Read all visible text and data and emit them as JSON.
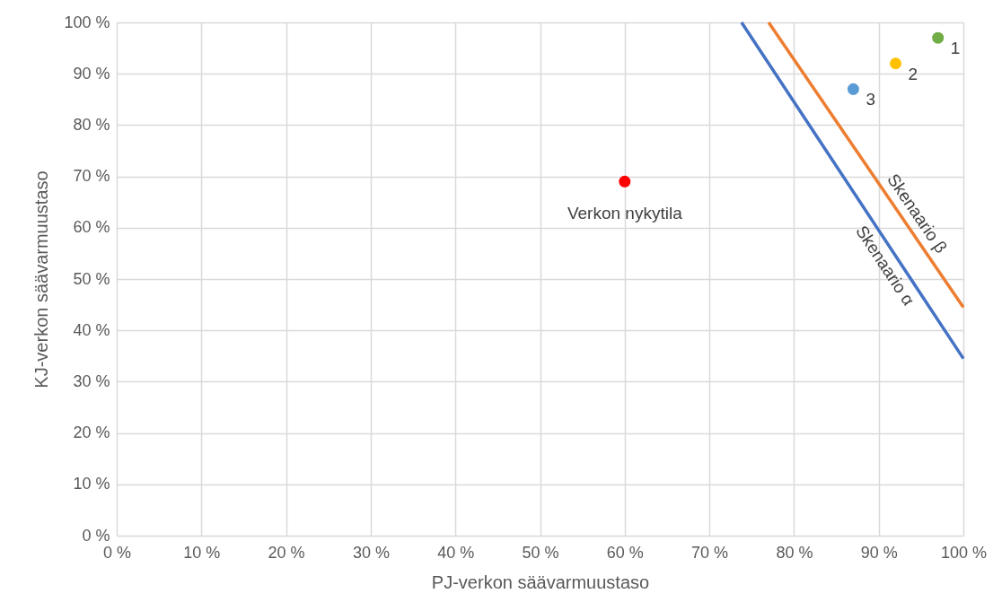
{
  "chart_data": {
    "type": "scatter",
    "xlabel": "PJ-verkon säävarmuustaso",
    "ylabel": "KJ-verkon säävarmuustaso",
    "xlim": [
      0,
      100
    ],
    "ylim": [
      0,
      100
    ],
    "xticks": [
      {
        "value": 0,
        "label": "0 %"
      },
      {
        "value": 10,
        "label": "10 %"
      },
      {
        "value": 20,
        "label": "20 %"
      },
      {
        "value": 30,
        "label": "30 %"
      },
      {
        "value": 40,
        "label": "40 %"
      },
      {
        "value": 50,
        "label": "50 %"
      },
      {
        "value": 60,
        "label": "60 %"
      },
      {
        "value": 70,
        "label": "70 %"
      },
      {
        "value": 80,
        "label": "80 %"
      },
      {
        "value": 90,
        "label": "90 %"
      },
      {
        "value": 100,
        "label": "100 %"
      }
    ],
    "yticks": [
      {
        "value": 0,
        "label": "0 %"
      },
      {
        "value": 10,
        "label": "10 %"
      },
      {
        "value": 20,
        "label": "20 %"
      },
      {
        "value": 30,
        "label": "30 %"
      },
      {
        "value": 40,
        "label": "40 %"
      },
      {
        "value": 50,
        "label": "50 %"
      },
      {
        "value": 60,
        "label": "60 %"
      },
      {
        "value": 70,
        "label": "70 %"
      },
      {
        "value": 80,
        "label": "80 %"
      },
      {
        "value": 90,
        "label": "90 %"
      },
      {
        "value": 100,
        "label": "100 %"
      }
    ],
    "grid": true,
    "legend": false,
    "series": [
      {
        "name": "Skenaario α",
        "type": "line",
        "color": "#4472c4",
        "x": [
          73.8,
          100
        ],
        "values": [
          100,
          34.5
        ]
      },
      {
        "name": "Skenaario β",
        "type": "line",
        "color": "#ed7d31",
        "x": [
          77,
          100
        ],
        "values": [
          100,
          44.5
        ]
      },
      {
        "name": "Verkon nykytila",
        "type": "scatter",
        "color": "#ff0000",
        "marker": "circle",
        "x": [
          60
        ],
        "values": [
          69
        ]
      },
      {
        "name": "1",
        "type": "scatter",
        "color": "#70ad47",
        "marker": "circle",
        "x": [
          97
        ],
        "values": [
          97
        ]
      },
      {
        "name": "2",
        "type": "scatter",
        "color": "#ffc000",
        "marker": "circle",
        "x": [
          92
        ],
        "values": [
          92
        ]
      },
      {
        "name": "3",
        "type": "scatter",
        "color": "#5b9bd5",
        "marker": "circle",
        "x": [
          87
        ],
        "values": [
          87
        ]
      }
    ]
  }
}
